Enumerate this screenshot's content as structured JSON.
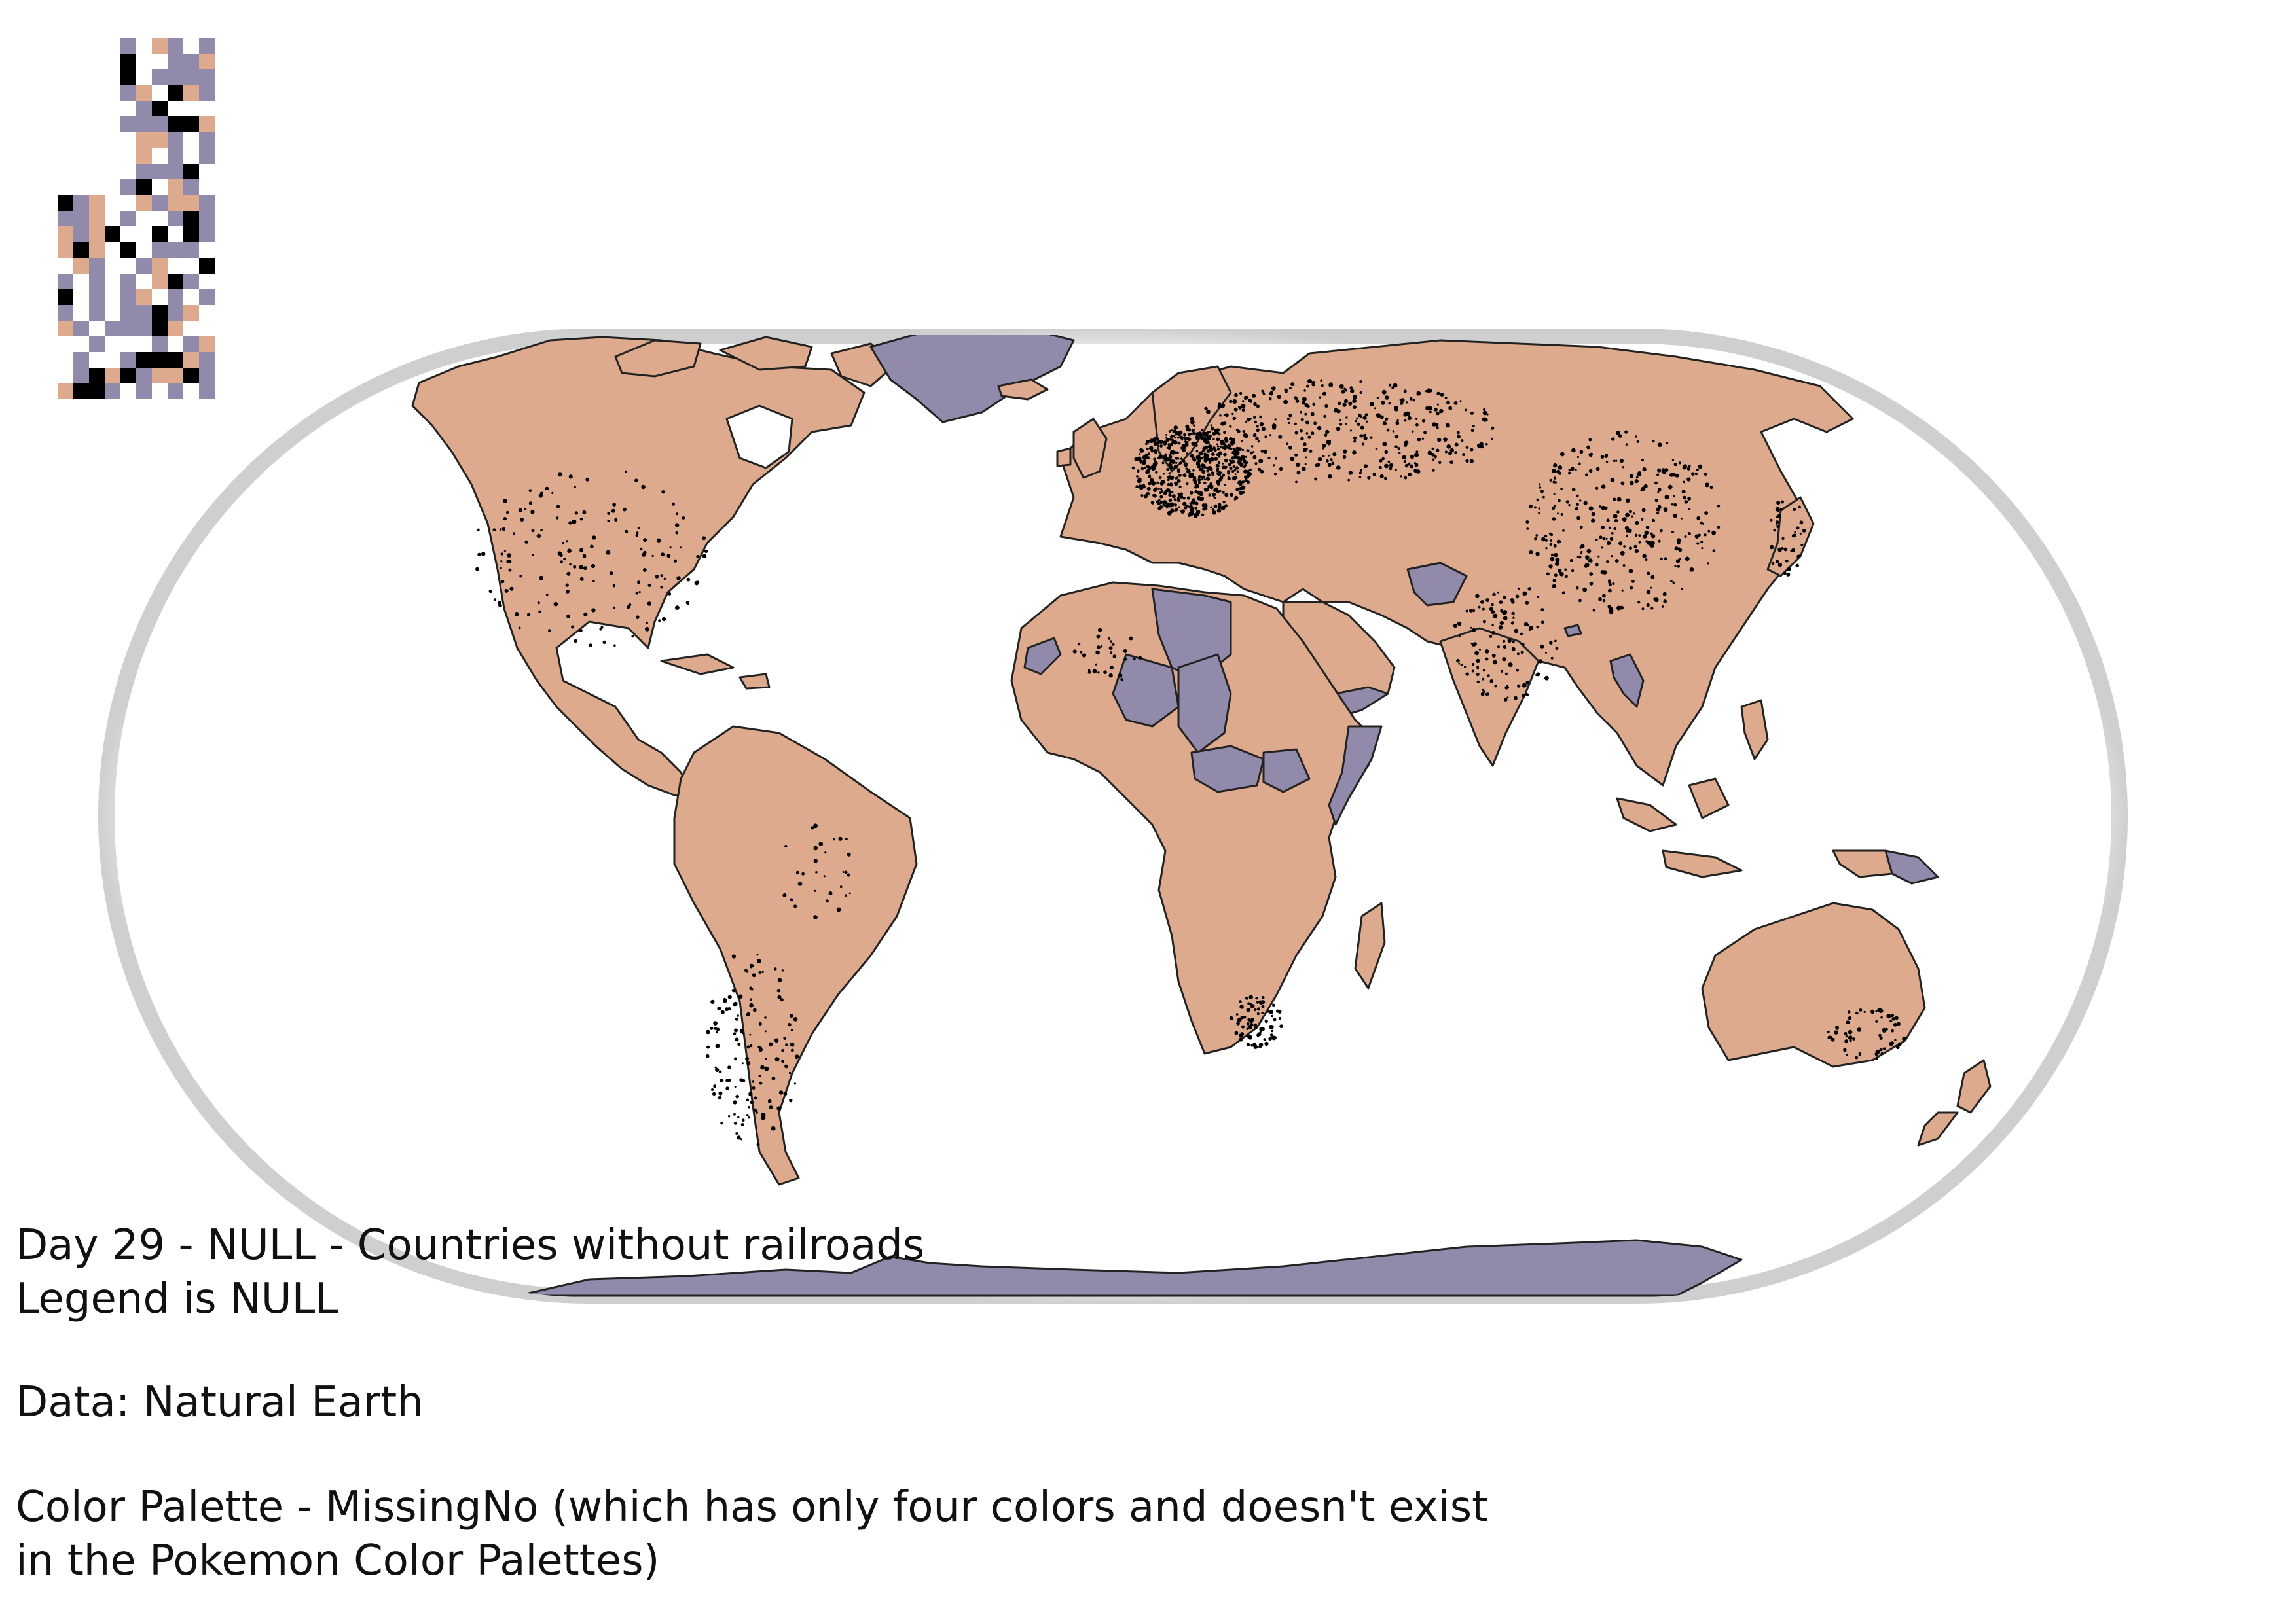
{
  "title": "Day 29 - NULL - Countries without railroads",
  "legend_note": "Legend is NULL",
  "source": "Data: Natural Earth",
  "palette_note_line1": "Color Palette - MissingNo (which has only four colors and doesn't exist",
  "palette_note_line2": "in the Pokemon Color Palettes)",
  "map": {
    "projection": "equal-earth-like oval",
    "colors": {
      "country_with_railroads": "#deaa8d",
      "country_without_railroads": "#918aab",
      "border": "#222222",
      "rail_points": "#000000",
      "ocean": "#ffffff",
      "frame_shadow": "#dcdcdc"
    },
    "countries_without_railroads": [
      "Greenland",
      "Antarctica",
      "Libya",
      "Chad",
      "Niger",
      "Central African Republic",
      "South Sudan",
      "Somalia",
      "Yemen",
      "Afghanistan",
      "Laos",
      "Papua New Guinea",
      "Western Sahara",
      "Guinea-Bissau",
      "Burundi",
      "Bhutan"
    ]
  },
  "sprite": {
    "name": "MissingNo",
    "colors": [
      "#ffffff",
      "#918aab",
      "#deaa8d",
      "#000000"
    ]
  }
}
